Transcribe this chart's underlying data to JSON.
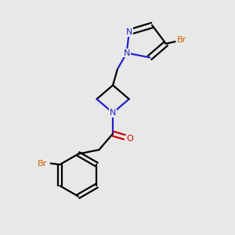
{
  "background_color": "#e8e8e8",
  "bond_color": "#000000",
  "n_color": "#2222cc",
  "o_color": "#cc0000",
  "br_color": "#cc6600",
  "line_width": 1.6,
  "figsize": [
    3.0,
    3.0
  ],
  "dpi": 100,
  "xlim": [
    0,
    10
  ],
  "ylim": [
    0,
    10
  ]
}
